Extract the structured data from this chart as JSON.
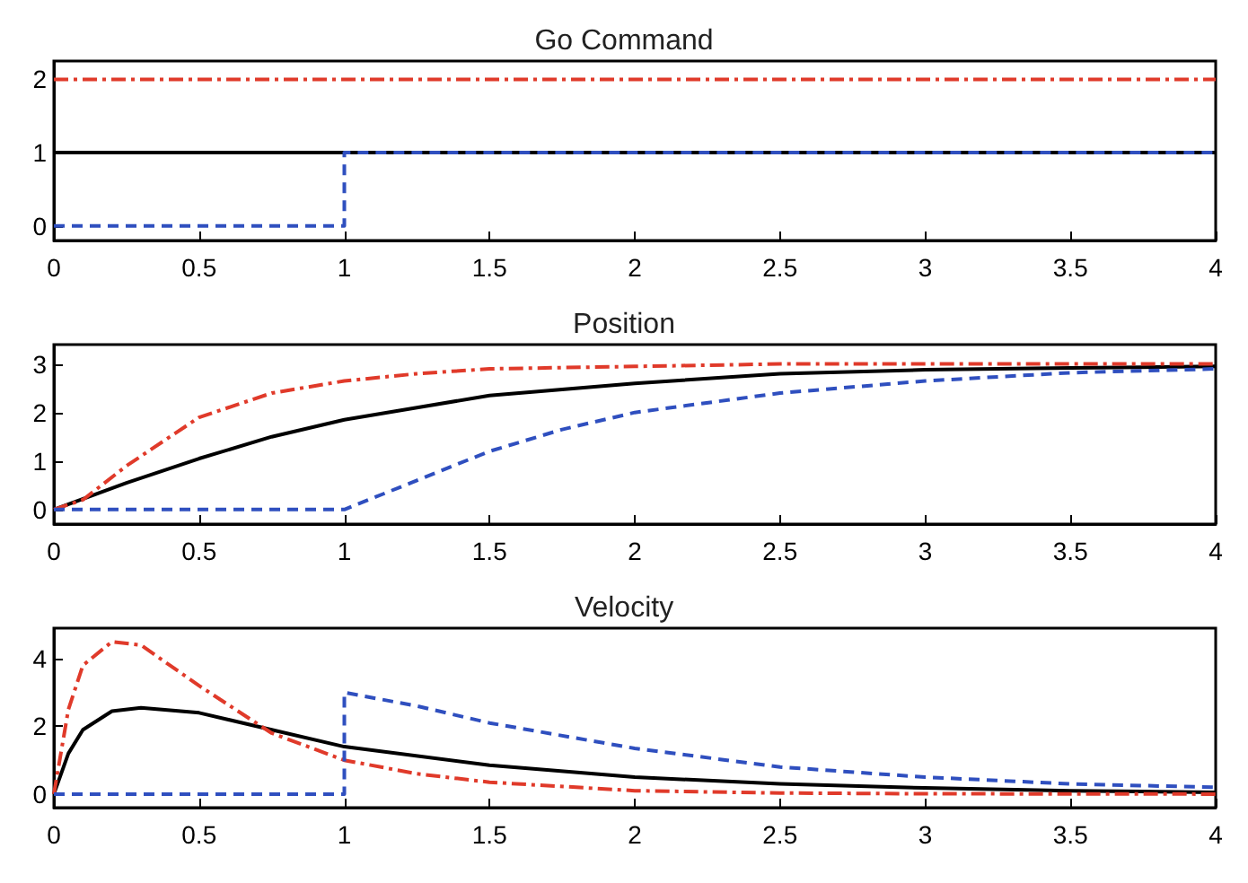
{
  "chart_data": [
    {
      "type": "line",
      "title": "Go Command",
      "xlim": [
        0,
        4
      ],
      "xticks": [
        0,
        0.5,
        1,
        1.5,
        2,
        2.5,
        3,
        3.5,
        4
      ],
      "ylim": [
        -0.2,
        2.25
      ],
      "yticks": [
        0,
        1,
        2
      ],
      "marker": "none",
      "series": [
        {
          "color": "#000000",
          "line_style": "solid",
          "x": [
            0,
            4
          ],
          "values": [
            1,
            1
          ]
        },
        {
          "color": "#e03a2a",
          "line_style": "dashdot",
          "x": [
            0,
            4
          ],
          "values": [
            2,
            2
          ]
        },
        {
          "color": "#2f4fbf",
          "line_style": "dashed",
          "x": [
            0,
            1,
            1,
            4
          ],
          "values": [
            0,
            0,
            1,
            1
          ]
        }
      ]
    },
    {
      "type": "line",
      "title": "Position",
      "xlim": [
        0,
        4
      ],
      "xticks": [
        0,
        0.5,
        1,
        1.5,
        2,
        2.5,
        3,
        3.5,
        4
      ],
      "ylim": [
        -0.3,
        3.4
      ],
      "yticks": [
        0,
        1,
        2,
        3
      ],
      "marker": "none",
      "series": [
        {
          "color": "#000000",
          "line_style": "solid",
          "x": [
            0,
            0.25,
            0.5,
            0.75,
            1,
            1.25,
            1.5,
            2,
            2.5,
            3,
            3.5,
            4
          ],
          "values": [
            0,
            0.55,
            1.05,
            1.5,
            1.85,
            2.1,
            2.35,
            2.6,
            2.8,
            2.88,
            2.92,
            2.95
          ]
        },
        {
          "color": "#e03a2a",
          "line_style": "dashdot",
          "x": [
            0,
            0.1,
            0.25,
            0.5,
            0.75,
            1,
            1.25,
            1.5,
            2,
            2.5,
            4
          ],
          "values": [
            0,
            0.2,
            0.9,
            1.9,
            2.4,
            2.65,
            2.8,
            2.9,
            2.95,
            3,
            3
          ]
        },
        {
          "color": "#2f4fbf",
          "line_style": "dashed",
          "x": [
            0,
            1,
            1.25,
            1.5,
            1.75,
            2,
            2.5,
            3,
            3.5,
            4
          ],
          "values": [
            0,
            0,
            0.6,
            1.2,
            1.65,
            2,
            2.4,
            2.65,
            2.82,
            2.9
          ]
        }
      ]
    },
    {
      "type": "line",
      "title": "Velocity",
      "xlim": [
        0,
        4
      ],
      "xticks": [
        0,
        0.5,
        1,
        1.5,
        2,
        2.5,
        3,
        3.5,
        4
      ],
      "ylim": [
        -0.4,
        4.9
      ],
      "yticks": [
        0,
        2,
        4
      ],
      "marker": "none",
      "series": [
        {
          "color": "#000000",
          "line_style": "solid",
          "x": [
            0,
            0.05,
            0.1,
            0.2,
            0.3,
            0.5,
            0.75,
            1,
            1.5,
            2,
            2.5,
            3,
            3.5,
            4
          ],
          "values": [
            0,
            1.2,
            1.9,
            2.45,
            2.55,
            2.4,
            1.9,
            1.4,
            0.85,
            0.5,
            0.3,
            0.18,
            0.1,
            0.05
          ]
        },
        {
          "color": "#e03a2a",
          "line_style": "dashdot",
          "x": [
            0,
            0.05,
            0.1,
            0.2,
            0.3,
            0.5,
            0.75,
            1,
            1.25,
            1.5,
            2,
            2.5,
            3,
            4
          ],
          "values": [
            0,
            2.5,
            3.8,
            4.5,
            4.4,
            3.2,
            1.8,
            1,
            0.6,
            0.35,
            0.1,
            0.03,
            0.01,
            0
          ]
        },
        {
          "color": "#2f4fbf",
          "line_style": "dashed",
          "x": [
            0,
            1,
            1,
            1.25,
            1.5,
            2,
            2.5,
            3,
            3.5,
            4
          ],
          "values": [
            0,
            0,
            3,
            2.6,
            2.1,
            1.35,
            0.8,
            0.5,
            0.3,
            0.2
          ]
        }
      ]
    }
  ]
}
